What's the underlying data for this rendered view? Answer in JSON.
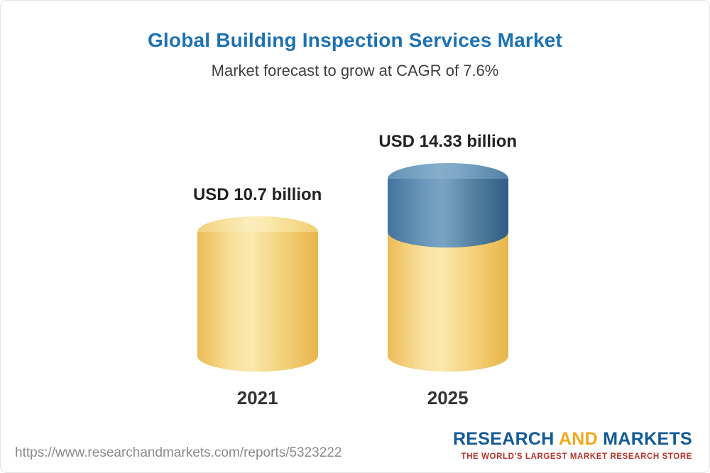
{
  "chart_data": {
    "type": "bar",
    "variant": "3d-cylinder",
    "title": "Global Building Inspection Services Market",
    "subtitle": "Market forecast to grow at CAGR of 7.6%",
    "unit": "USD billion",
    "categories": [
      "2021",
      "2025"
    ],
    "values": [
      10.7,
      14.33
    ],
    "cagr": "7.6%",
    "bars": [
      {
        "category": "2021",
        "value": 10.7,
        "label": "USD 10.7 billion",
        "segments": [
          {
            "name": "base",
            "value": 10.7,
            "color": "#f6cd6f"
          }
        ]
      },
      {
        "category": "2025",
        "value": 14.33,
        "label": "USD 14.33 billion",
        "segments": [
          {
            "name": "base",
            "value": 10.7,
            "color": "#f6cd6f"
          },
          {
            "name": "growth",
            "value": 3.63,
            "color": "#4d7fa7"
          }
        ]
      }
    ],
    "colors": {
      "gold": "#f6cd6f",
      "blue": "#4d7fa7",
      "title": "#1d71b4"
    },
    "legend": "none",
    "grid": false
  },
  "footer": {
    "url": "https://www.researchandmarkets.com/reports/5323222",
    "logo": {
      "part1": "RESEARCH ",
      "part2": "AND",
      "part3": " MARKETS",
      "tagline": "THE WORLD'S LARGEST MARKET RESEARCH STORE"
    }
  }
}
